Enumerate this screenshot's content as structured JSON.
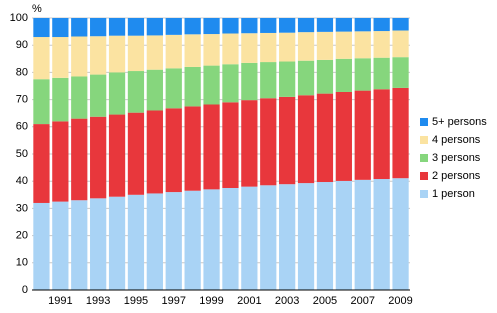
{
  "chart_data": {
    "type": "stacked_bar",
    "y_label": "%",
    "categories": [
      null,
      "1991",
      null,
      "1993",
      null,
      "1995",
      null,
      "1997",
      null,
      "1999",
      null,
      "2001",
      null,
      "2003",
      null,
      "2005",
      null,
      "2007",
      null,
      "2009"
    ],
    "series": [
      {
        "name": "1 person",
        "color": "#a9d3f5",
        "values": [
          32,
          32.5,
          33,
          33.7,
          34.3,
          35,
          35.5,
          36,
          36.5,
          37,
          37.5,
          38,
          38.5,
          38.9,
          39.3,
          39.7,
          40.1,
          40.5,
          40.8,
          41.1
        ]
      },
      {
        "name": "2 persons",
        "color": "#e8373c",
        "values": [
          29,
          29.5,
          30,
          30,
          30.2,
          30.2,
          30.5,
          30.8,
          31,
          31.2,
          31.5,
          31.8,
          32,
          32.1,
          32.3,
          32.5,
          32.7,
          32.8,
          33,
          33.2
        ]
      },
      {
        "name": "3 persons",
        "color": "#86d67d",
        "values": [
          16.5,
          16,
          15.5,
          15.5,
          15.5,
          15.3,
          15,
          14.7,
          14.5,
          14.3,
          14,
          13.7,
          13.3,
          13,
          12.7,
          12.4,
          12.2,
          11.9,
          11.6,
          11.3
        ]
      },
      {
        "name": "4 persons",
        "color": "#fbe3a1",
        "values": [
          15.5,
          15,
          14.7,
          14.1,
          13.5,
          13,
          12.6,
          12.3,
          12,
          11.6,
          11.3,
          10.9,
          10.7,
          10.6,
          10.5,
          10.3,
          10,
          9.9,
          9.8,
          9.8
        ]
      },
      {
        "name": "5+ persons",
        "color": "#1f8bef",
        "values": [
          7,
          7,
          6.8,
          6.7,
          6.5,
          6.5,
          6.4,
          6.2,
          6,
          5.9,
          5.7,
          5.6,
          5.5,
          5.4,
          5.2,
          5.1,
          5,
          4.9,
          4.8,
          4.6
        ]
      }
    ],
    "ylim": [
      0,
      100
    ],
    "yticks": [
      0,
      10,
      20,
      30,
      40,
      50,
      60,
      70,
      80,
      90,
      100
    ],
    "grid": true,
    "legend": "right"
  }
}
